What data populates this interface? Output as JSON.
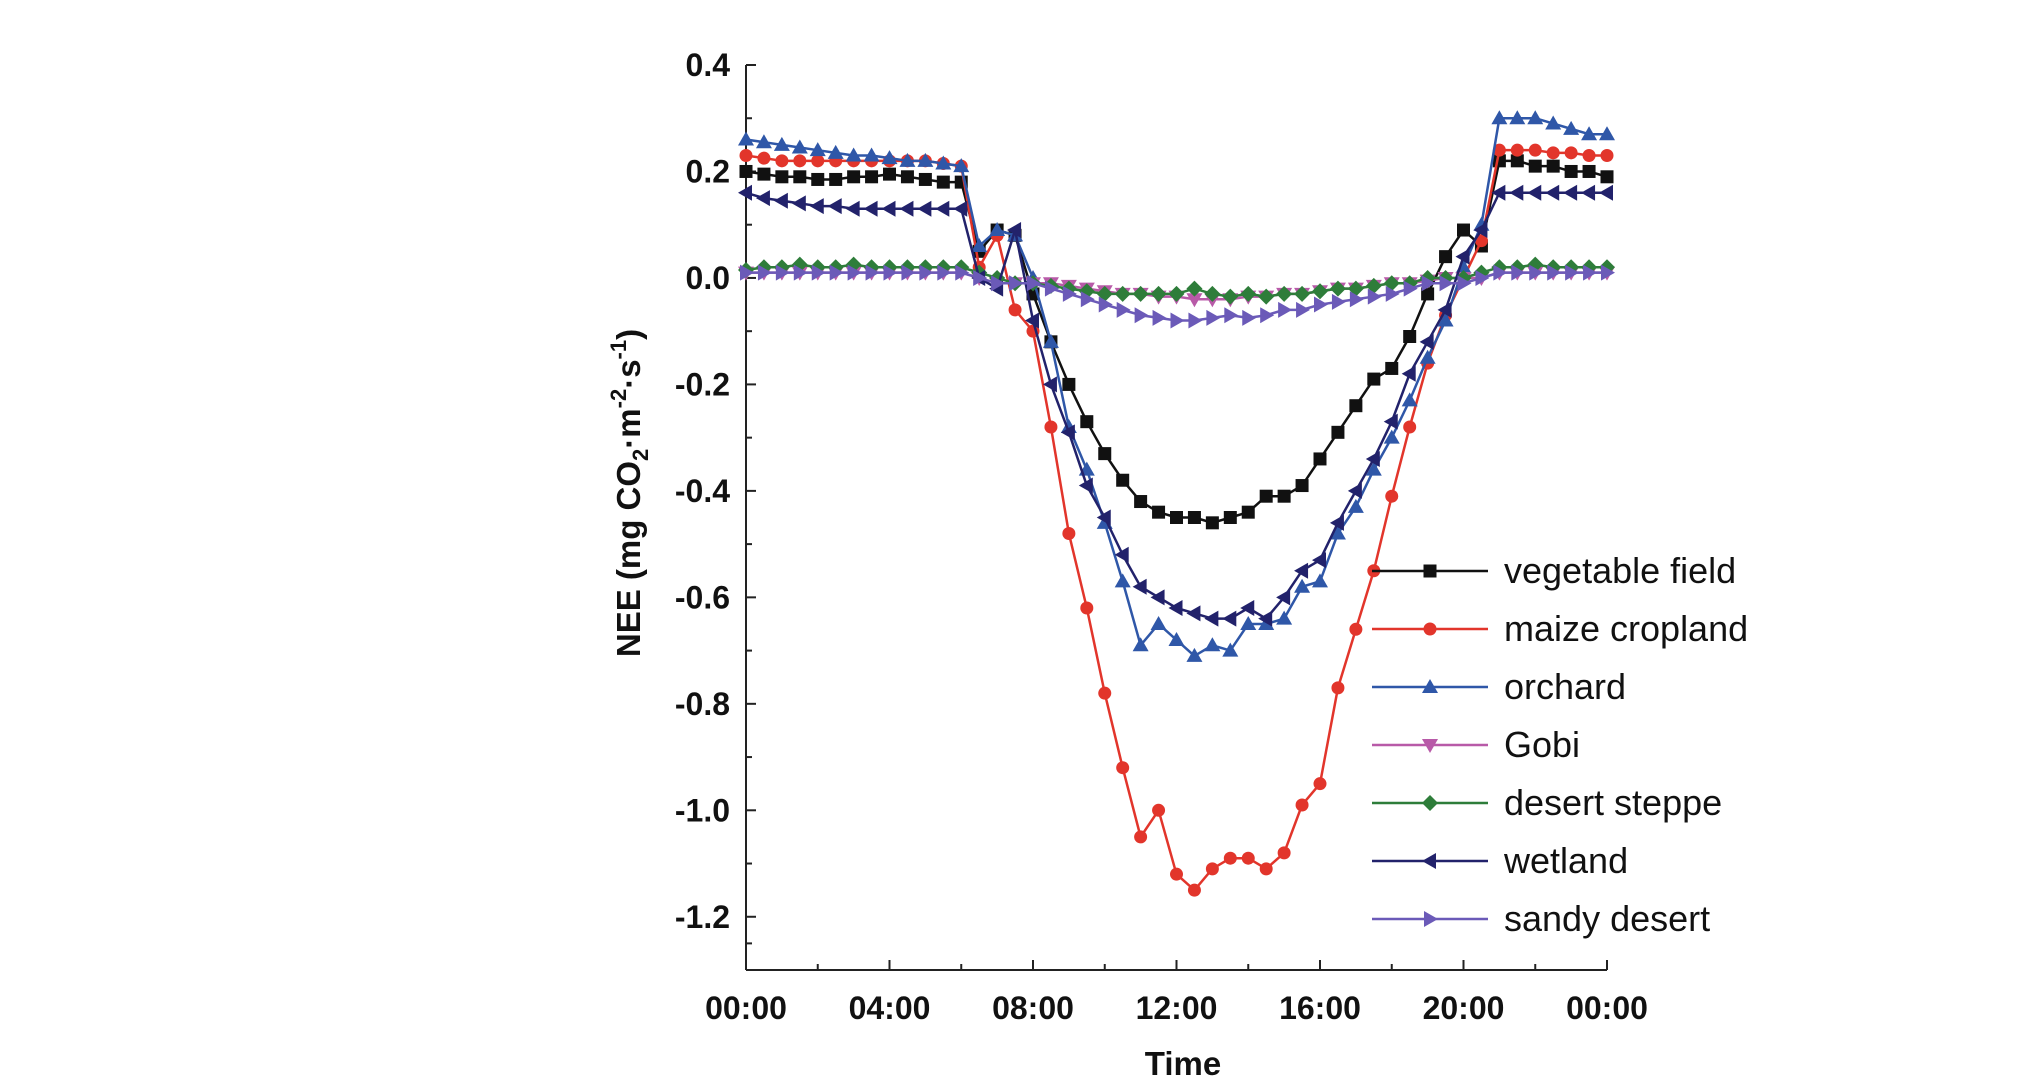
{
  "chart_data": {
    "type": "line",
    "xlabel": "Time",
    "ylabel": {
      "prefix": "NEE (mg CO",
      "sub": "2",
      "mid1": "·m",
      "sup1": "-2",
      "mid2": "·s",
      "sup2": "-1",
      "suffix": ")"
    },
    "xlim": [
      0,
      24
    ],
    "ylim": [
      -1.3,
      0.4
    ],
    "x_ticks": [
      {
        "value": 0,
        "label": "00:00"
      },
      {
        "value": 4,
        "label": "04:00"
      },
      {
        "value": 8,
        "label": "08:00"
      },
      {
        "value": 12,
        "label": "12:00"
      },
      {
        "value": 16,
        "label": "16:00"
      },
      {
        "value": 20,
        "label": "20:00"
      },
      {
        "value": 24,
        "label": "00:00"
      }
    ],
    "y_ticks": [
      {
        "value": 0.4,
        "label": "0.4"
      },
      {
        "value": 0.2,
        "label": "0.2"
      },
      {
        "value": 0.0,
        "label": "0.0"
      },
      {
        "value": -0.2,
        "label": "-0.2"
      },
      {
        "value": -0.4,
        "label": "-0.4"
      },
      {
        "value": -0.6,
        "label": "-0.6"
      },
      {
        "value": -0.8,
        "label": "-0.8"
      },
      {
        "value": -1.0,
        "label": "-1.0"
      },
      {
        "value": -1.2,
        "label": "-1.2"
      }
    ],
    "grid": false,
    "legend_position": "bottom-right",
    "x": [
      0,
      0.5,
      1,
      1.5,
      2,
      2.5,
      3,
      3.5,
      4,
      4.5,
      5,
      5.5,
      6,
      6.5,
      7,
      7.5,
      8,
      8.5,
      9,
      9.5,
      10,
      10.5,
      11,
      11.5,
      12,
      12.5,
      13,
      13.5,
      14,
      14.5,
      15,
      15.5,
      16,
      16.5,
      17,
      17.5,
      18,
      18.5,
      19,
      19.5,
      20,
      20.5,
      21,
      21.5,
      22,
      22.5,
      23,
      23.5,
      24
    ],
    "series": [
      {
        "name": "vegetable field",
        "color": "#111111",
        "marker": "square",
        "values": [
          0.2,
          0.195,
          0.19,
          0.19,
          0.185,
          0.185,
          0.19,
          0.19,
          0.195,
          0.19,
          0.185,
          0.18,
          0.18,
          0.05,
          0.09,
          0.08,
          -0.03,
          -0.12,
          -0.2,
          -0.27,
          -0.33,
          -0.38,
          -0.42,
          -0.44,
          -0.45,
          -0.45,
          -0.46,
          -0.45,
          -0.44,
          -0.41,
          -0.41,
          -0.39,
          -0.34,
          -0.29,
          -0.24,
          -0.19,
          -0.17,
          -0.11,
          -0.03,
          0.04,
          0.09,
          0.06,
          0.22,
          0.22,
          0.21,
          0.21,
          0.2,
          0.2,
          0.19
        ]
      },
      {
        "name": "maize cropland",
        "color": "#e2352b",
        "marker": "circle",
        "values": [
          0.23,
          0.225,
          0.22,
          0.22,
          0.22,
          0.22,
          0.22,
          0.22,
          0.22,
          0.22,
          0.22,
          0.215,
          0.21,
          0.02,
          0.08,
          -0.06,
          -0.1,
          -0.28,
          -0.48,
          -0.62,
          -0.78,
          -0.92,
          -1.05,
          -1.0,
          -1.12,
          -1.15,
          -1.11,
          -1.09,
          -1.09,
          -1.11,
          -1.08,
          -0.99,
          -0.95,
          -0.77,
          -0.66,
          -0.55,
          -0.41,
          -0.28,
          -0.16,
          -0.07,
          0.0,
          0.07,
          0.24,
          0.24,
          0.24,
          0.235,
          0.235,
          0.23,
          0.23
        ]
      },
      {
        "name": "orchard",
        "color": "#2f57a8",
        "marker": "triangle-up",
        "values": [
          0.26,
          0.255,
          0.25,
          0.245,
          0.24,
          0.235,
          0.23,
          0.23,
          0.225,
          0.22,
          0.22,
          0.215,
          0.21,
          0.06,
          0.09,
          0.08,
          0.0,
          -0.12,
          -0.28,
          -0.36,
          -0.46,
          -0.57,
          -0.69,
          -0.65,
          -0.68,
          -0.71,
          -0.69,
          -0.7,
          -0.65,
          -0.65,
          -0.64,
          -0.58,
          -0.57,
          -0.48,
          -0.43,
          -0.36,
          -0.3,
          -0.23,
          -0.15,
          -0.08,
          0.02,
          0.1,
          0.3,
          0.3,
          0.3,
          0.29,
          0.28,
          0.27,
          0.27
        ]
      },
      {
        "name": "Gobi",
        "color": "#b85aa8",
        "marker": "triangle-down",
        "values": [
          0.01,
          0.01,
          0.01,
          0.01,
          0.01,
          0.01,
          0.01,
          0.01,
          0.01,
          0.01,
          0.01,
          0.01,
          0.01,
          0.0,
          -0.01,
          -0.01,
          -0.01,
          -0.01,
          -0.015,
          -0.02,
          -0.025,
          -0.03,
          -0.03,
          -0.035,
          -0.035,
          -0.04,
          -0.04,
          -0.04,
          -0.035,
          -0.035,
          -0.03,
          -0.03,
          -0.025,
          -0.02,
          -0.02,
          -0.015,
          -0.01,
          -0.01,
          -0.005,
          0.0,
          0.0,
          0.0,
          0.01,
          0.01,
          0.01,
          0.01,
          0.01,
          0.01,
          0.01
        ]
      },
      {
        "name": "desert steppe",
        "color": "#2e7d3a",
        "marker": "diamond",
        "values": [
          0.015,
          0.02,
          0.02,
          0.025,
          0.02,
          0.02,
          0.025,
          0.02,
          0.02,
          0.02,
          0.02,
          0.02,
          0.02,
          0.01,
          0.0,
          -0.01,
          -0.01,
          -0.015,
          -0.02,
          -0.025,
          -0.03,
          -0.03,
          -0.03,
          -0.03,
          -0.03,
          -0.02,
          -0.03,
          -0.035,
          -0.03,
          -0.035,
          -0.03,
          -0.03,
          -0.025,
          -0.02,
          -0.02,
          -0.015,
          -0.01,
          -0.01,
          0.0,
          0.0,
          0.0,
          0.01,
          0.02,
          0.02,
          0.025,
          0.02,
          0.02,
          0.02,
          0.02
        ]
      },
      {
        "name": "wetland",
        "color": "#22226b",
        "marker": "triangle-left",
        "values": [
          0.16,
          0.15,
          0.145,
          0.14,
          0.135,
          0.135,
          0.13,
          0.13,
          0.13,
          0.13,
          0.13,
          0.13,
          0.13,
          0.0,
          -0.02,
          0.09,
          -0.08,
          -0.2,
          -0.29,
          -0.39,
          -0.45,
          -0.52,
          -0.58,
          -0.6,
          -0.62,
          -0.63,
          -0.64,
          -0.64,
          -0.62,
          -0.64,
          -0.6,
          -0.55,
          -0.53,
          -0.46,
          -0.4,
          -0.34,
          -0.27,
          -0.18,
          -0.12,
          -0.06,
          0.04,
          0.09,
          0.16,
          0.16,
          0.16,
          0.16,
          0.16,
          0.16,
          0.16
        ]
      },
      {
        "name": "sandy desert",
        "color": "#6b5ab8",
        "marker": "triangle-right",
        "values": [
          0.01,
          0.01,
          0.01,
          0.01,
          0.01,
          0.01,
          0.01,
          0.01,
          0.01,
          0.01,
          0.01,
          0.01,
          0.01,
          0.0,
          -0.01,
          -0.01,
          -0.01,
          -0.02,
          -0.03,
          -0.04,
          -0.05,
          -0.06,
          -0.07,
          -0.075,
          -0.08,
          -0.08,
          -0.075,
          -0.07,
          -0.075,
          -0.07,
          -0.06,
          -0.06,
          -0.05,
          -0.045,
          -0.04,
          -0.035,
          -0.03,
          -0.02,
          -0.01,
          -0.01,
          -0.01,
          0.0,
          0.01,
          0.01,
          0.01,
          0.01,
          0.01,
          0.01,
          0.01
        ]
      }
    ]
  }
}
